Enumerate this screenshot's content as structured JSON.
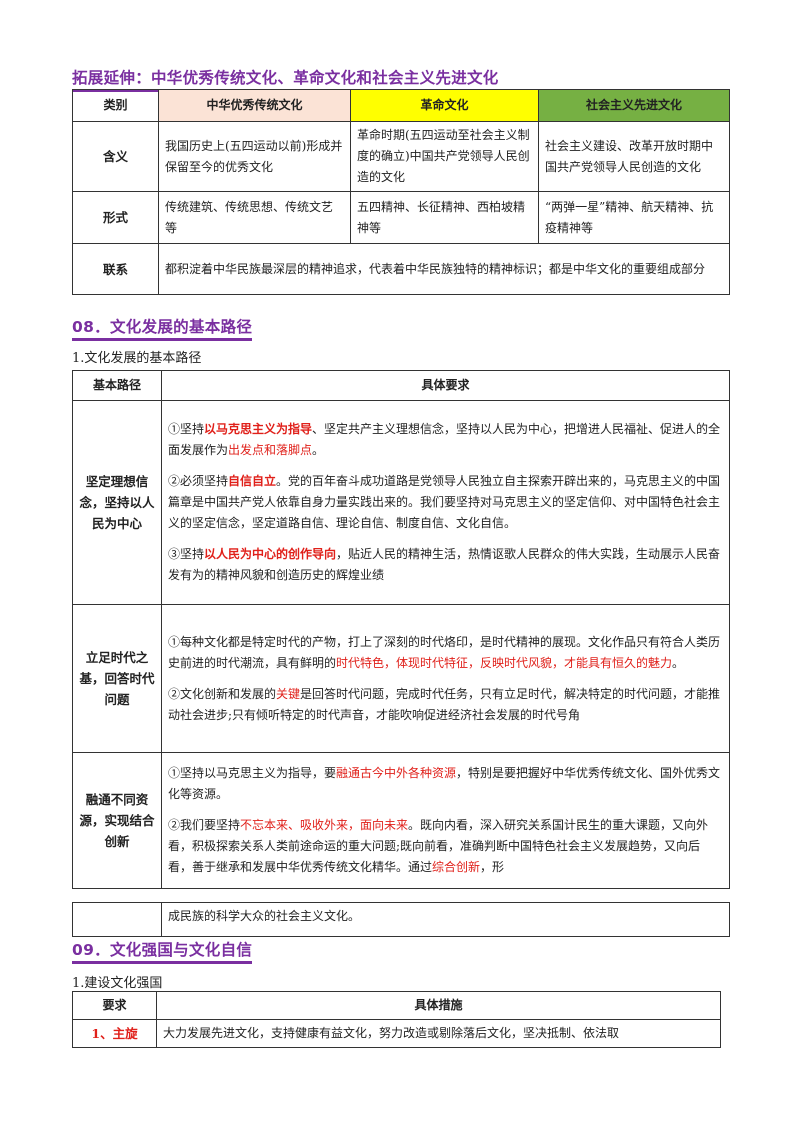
{
  "section_extend": {
    "heading": "拓展延伸：中华优秀传统文化、革命文化和社会主义先进文化",
    "headers": [
      "类别",
      "中华优秀传统文化",
      "革命文化",
      "社会主义先进文化"
    ],
    "header_colors": [
      "#ffffff",
      "#fbe3d6",
      "#ffff00",
      "#76b043"
    ],
    "rows": [
      {
        "label": "含义",
        "cells": [
          "我国历史上(五四运动以前)形成并保留至今的优秀文化",
          "革命时期(五四运动至社会主义制度的确立)中国共产党领导人民创造的文化",
          "社会主义建设、改革开放时期中国共产党领导人民创造的文化"
        ]
      },
      {
        "label": "形式",
        "cells": [
          "传统建筑、传统思想、传统文艺等",
          "五四精神、长征精神、西柏坡精神等",
          "“两弹一星”精神、航天精神、抗疫精神等"
        ]
      },
      {
        "label": "联系",
        "merged": "都积淀着中华民族最深层的精神追求，代表着中华民族独特的精神标识；都是中华文化的重要组成部分"
      }
    ]
  },
  "section08": {
    "heading": "08．文化发展的基本路径",
    "subheading": "1.文化发展的基本路径",
    "headers": [
      "基本路径",
      "具体要求"
    ],
    "rows": [
      {
        "label": "坚定理想信念，坚持以人民为中心",
        "items": [
          {
            "a": "①坚持",
            "b": "以马克思主义为指导",
            "c": "、坚定共产主义理想信念，坚持以人民为中心，把增进人民福祉、促进人的全面发展作为",
            "d": "出发点和落脚点",
            "e": "。"
          },
          {
            "a": "②必须坚持",
            "b": "自信自立",
            "c": "。党的百年奋斗成功道路是党领导人民独立自主探索开辟出来的，马克思主义的中国篇章是中国共产党人依靠自身力量实践出来的。我们要坚持对马克思主义的坚定信仰、对中国特色社会主义的坚定信念，坚定道路自信、理论自信、制度自信、文化自信。"
          },
          {
            "a": "③坚持",
            "b": "以人民为中心的创作导向",
            "c": "，贴近人民的精神生活，热情讴歌人民群众的伟大实践，生动展示人民奋发有为的精神风貌和创造历史的辉煌业绩"
          }
        ]
      },
      {
        "label": "立足时代之基，回答时代问题",
        "items": [
          {
            "a": "①每种文化都是特定时代的产物，打上了深刻的时代烙印，是时代精神的展现。文化作品只有符合人类历史前进的时代潮流，具有鲜明的",
            "r": "时代特色，体现时代特征，反映时代风貌，才能具有恒久的魅力",
            "e": "。"
          },
          {
            "a": "②文化创新和发展的",
            "r": "关键",
            "c": "是回答时代问题，完成时代任务，只有立足时代，解决特定的时代问题，才能推动社会进步;只有倾听特定的时代声音，才能吹响促进经济社会发展的时代号角"
          }
        ]
      },
      {
        "label": "融通不同资源，实现结合创新",
        "items": [
          {
            "a": "①坚持以马克思主义为指导，要",
            "r": "融通古今中外各种资源",
            "c": "，特别是要把握好中华优秀传统文化、国外优秀文化等资源。"
          },
          {
            "a": "②我们要坚持",
            "r": "不忘本来、吸收外来，面向未来",
            "c": "。既向内看，深入研究关系国计民生的重大课题，又向外看，积极探索关系人类前途命运的重大问题;既向前看，准确判断中国特色社会主义发展趋势，又向后看，善于继承和发展中华优秀传统文化精华。通过",
            "r2": "综合创新",
            "e": "，形"
          }
        ]
      }
    ],
    "continuation": "成民族的科学大众的社会主义文化。"
  },
  "section09": {
    "heading": "09．文化强国与文化自信",
    "subheading": "1.建设文化强国",
    "headers": [
      "要求",
      "具体措施"
    ],
    "rows": [
      {
        "label": "1、主旋",
        "text": "大力发展先进文化，支持健康有益文化，努力改造或剔除落后文化，坚决抵制、依法取"
      }
    ]
  },
  "colors": {
    "heading": "#7a2fa0",
    "emphasis": "#e0201a"
  }
}
